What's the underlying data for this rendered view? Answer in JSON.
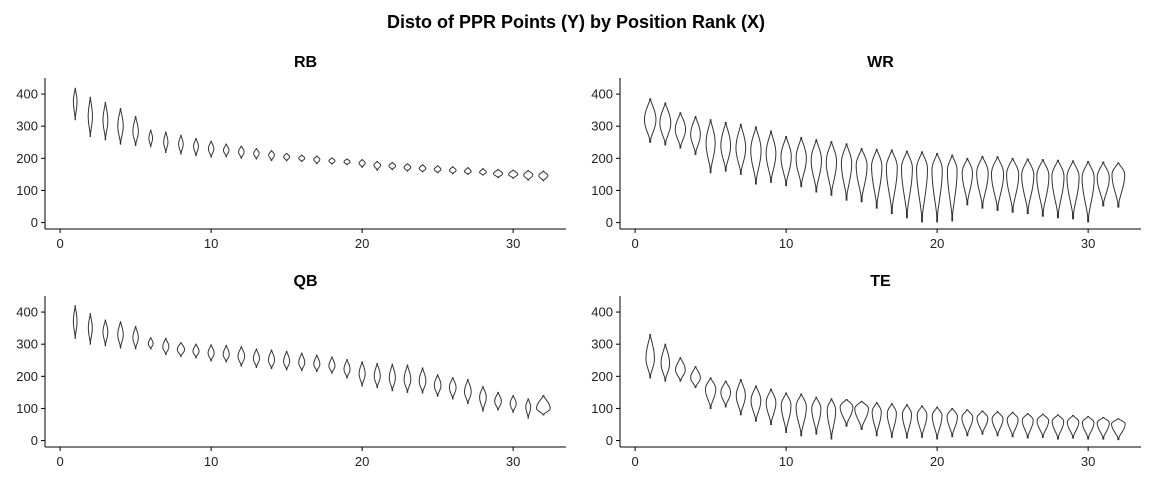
{
  "chart_data": {
    "type": "violin",
    "title": "Disto of PPR Points (Y) by Position Rank (X)",
    "xlim": [
      -1,
      33.5
    ],
    "ylim": [
      -20,
      450
    ],
    "x_ticks": [
      0,
      10,
      20,
      30
    ],
    "y_ticks": [
      0,
      100,
      200,
      300,
      400
    ],
    "panels": [
      {
        "name": "RB",
        "series": [
          {
            "x": 1,
            "min": 320,
            "max": 418,
            "median": 378,
            "hw": 0.12
          },
          {
            "x": 2,
            "min": 268,
            "max": 390,
            "median": 330,
            "hw": 0.14
          },
          {
            "x": 3,
            "min": 258,
            "max": 374,
            "median": 318,
            "hw": 0.16
          },
          {
            "x": 4,
            "min": 244,
            "max": 355,
            "median": 300,
            "hw": 0.18
          },
          {
            "x": 5,
            "min": 240,
            "max": 330,
            "median": 283,
            "hw": 0.18
          },
          {
            "x": 6,
            "min": 236,
            "max": 288,
            "median": 262,
            "hw": 0.12
          },
          {
            "x": 7,
            "min": 218,
            "max": 282,
            "median": 250,
            "hw": 0.14
          },
          {
            "x": 8,
            "min": 213,
            "max": 272,
            "median": 244,
            "hw": 0.15
          },
          {
            "x": 9,
            "min": 208,
            "max": 262,
            "median": 237,
            "hw": 0.16
          },
          {
            "x": 10,
            "min": 204,
            "max": 253,
            "median": 230,
            "hw": 0.18
          },
          {
            "x": 11,
            "min": 205,
            "max": 244,
            "median": 225,
            "hw": 0.18
          },
          {
            "x": 12,
            "min": 200,
            "max": 238,
            "median": 220,
            "hw": 0.18
          },
          {
            "x": 13,
            "min": 198,
            "max": 230,
            "median": 215,
            "hw": 0.18
          },
          {
            "x": 14,
            "min": 193,
            "max": 224,
            "median": 210,
            "hw": 0.19
          },
          {
            "x": 15,
            "min": 192,
            "max": 215,
            "median": 205,
            "hw": 0.2
          },
          {
            "x": 16,
            "min": 190,
            "max": 210,
            "median": 200,
            "hw": 0.2
          },
          {
            "x": 17,
            "min": 183,
            "max": 207,
            "median": 196,
            "hw": 0.2
          },
          {
            "x": 18,
            "min": 182,
            "max": 201,
            "median": 192,
            "hw": 0.2
          },
          {
            "x": 19,
            "min": 180,
            "max": 198,
            "median": 189,
            "hw": 0.2
          },
          {
            "x": 20,
            "min": 172,
            "max": 196,
            "median": 185,
            "hw": 0.2
          },
          {
            "x": 21,
            "min": 163,
            "max": 190,
            "median": 179,
            "hw": 0.22
          },
          {
            "x": 22,
            "min": 165,
            "max": 187,
            "median": 176,
            "hw": 0.22
          },
          {
            "x": 23,
            "min": 160,
            "max": 183,
            "median": 172,
            "hw": 0.22
          },
          {
            "x": 24,
            "min": 158,
            "max": 180,
            "median": 168,
            "hw": 0.22
          },
          {
            "x": 25,
            "min": 155,
            "max": 177,
            "median": 165,
            "hw": 0.22
          },
          {
            "x": 26,
            "min": 152,
            "max": 174,
            "median": 162,
            "hw": 0.22
          },
          {
            "x": 27,
            "min": 150,
            "max": 171,
            "median": 159,
            "hw": 0.22
          },
          {
            "x": 28,
            "min": 148,
            "max": 168,
            "median": 156,
            "hw": 0.22
          },
          {
            "x": 29,
            "min": 140,
            "max": 165,
            "median": 152,
            "hw": 0.3
          },
          {
            "x": 30,
            "min": 138,
            "max": 163,
            "median": 150,
            "hw": 0.3
          },
          {
            "x": 31,
            "min": 132,
            "max": 162,
            "median": 148,
            "hw": 0.3
          },
          {
            "x": 32,
            "min": 130,
            "max": 160,
            "median": 146,
            "hw": 0.3
          }
        ]
      },
      {
        "name": "WR",
        "series": [
          {
            "x": 1,
            "min": 250,
            "max": 385,
            "median": 320,
            "hw": 0.38
          },
          {
            "x": 2,
            "min": 242,
            "max": 372,
            "median": 310,
            "hw": 0.36
          },
          {
            "x": 3,
            "min": 232,
            "max": 342,
            "median": 290,
            "hw": 0.34
          },
          {
            "x": 4,
            "min": 212,
            "max": 330,
            "median": 275,
            "hw": 0.32
          },
          {
            "x": 5,
            "min": 155,
            "max": 320,
            "median": 248,
            "hw": 0.3
          },
          {
            "x": 6,
            "min": 160,
            "max": 312,
            "median": 240,
            "hw": 0.32
          },
          {
            "x": 7,
            "min": 150,
            "max": 306,
            "median": 232,
            "hw": 0.32
          },
          {
            "x": 8,
            "min": 120,
            "max": 298,
            "median": 225,
            "hw": 0.34
          },
          {
            "x": 9,
            "min": 125,
            "max": 285,
            "median": 215,
            "hw": 0.32
          },
          {
            "x": 10,
            "min": 115,
            "max": 268,
            "median": 205,
            "hw": 0.34
          },
          {
            "x": 11,
            "min": 112,
            "max": 265,
            "median": 200,
            "hw": 0.34
          },
          {
            "x": 12,
            "min": 95,
            "max": 258,
            "median": 195,
            "hw": 0.34
          },
          {
            "x": 13,
            "min": 85,
            "max": 252,
            "median": 190,
            "hw": 0.34
          },
          {
            "x": 14,
            "min": 70,
            "max": 245,
            "median": 185,
            "hw": 0.34
          },
          {
            "x": 15,
            "min": 65,
            "max": 230,
            "median": 178,
            "hw": 0.36
          },
          {
            "x": 16,
            "min": 45,
            "max": 228,
            "median": 175,
            "hw": 0.34
          },
          {
            "x": 17,
            "min": 28,
            "max": 226,
            "median": 172,
            "hw": 0.36
          },
          {
            "x": 18,
            "min": 15,
            "max": 222,
            "median": 170,
            "hw": 0.36
          },
          {
            "x": 19,
            "min": 2,
            "max": 220,
            "median": 168,
            "hw": 0.36
          },
          {
            "x": 20,
            "min": 2,
            "max": 215,
            "median": 165,
            "hw": 0.34
          },
          {
            "x": 21,
            "min": 5,
            "max": 210,
            "median": 162,
            "hw": 0.32
          },
          {
            "x": 22,
            "min": 55,
            "max": 200,
            "median": 155,
            "hw": 0.34
          },
          {
            "x": 23,
            "min": 45,
            "max": 206,
            "median": 155,
            "hw": 0.38
          },
          {
            "x": 24,
            "min": 38,
            "max": 205,
            "median": 152,
            "hw": 0.4
          },
          {
            "x": 25,
            "min": 32,
            "max": 200,
            "median": 150,
            "hw": 0.4
          },
          {
            "x": 26,
            "min": 28,
            "max": 198,
            "median": 148,
            "hw": 0.4
          },
          {
            "x": 27,
            "min": 20,
            "max": 196,
            "median": 146,
            "hw": 0.4
          },
          {
            "x": 28,
            "min": 15,
            "max": 194,
            "median": 144,
            "hw": 0.4
          },
          {
            "x": 29,
            "min": 12,
            "max": 192,
            "median": 142,
            "hw": 0.4
          },
          {
            "x": 30,
            "min": 2,
            "max": 190,
            "median": 140,
            "hw": 0.4
          },
          {
            "x": 31,
            "min": 52,
            "max": 188,
            "median": 140,
            "hw": 0.4
          },
          {
            "x": 32,
            "min": 48,
            "max": 186,
            "median": 150,
            "hw": 0.42
          }
        ]
      },
      {
        "name": "QB",
        "series": [
          {
            "x": 1,
            "min": 318,
            "max": 420,
            "median": 370,
            "hw": 0.12
          },
          {
            "x": 2,
            "min": 300,
            "max": 395,
            "median": 350,
            "hw": 0.13
          },
          {
            "x": 3,
            "min": 295,
            "max": 375,
            "median": 338,
            "hw": 0.16
          },
          {
            "x": 4,
            "min": 288,
            "max": 370,
            "median": 330,
            "hw": 0.18
          },
          {
            "x": 5,
            "min": 286,
            "max": 355,
            "median": 320,
            "hw": 0.18
          },
          {
            "x": 6,
            "min": 285,
            "max": 320,
            "median": 302,
            "hw": 0.16
          },
          {
            "x": 7,
            "min": 268,
            "max": 318,
            "median": 292,
            "hw": 0.2
          },
          {
            "x": 8,
            "min": 262,
            "max": 305,
            "median": 283,
            "hw": 0.24
          },
          {
            "x": 9,
            "min": 258,
            "max": 300,
            "median": 278,
            "hw": 0.2
          },
          {
            "x": 10,
            "min": 248,
            "max": 298,
            "median": 272,
            "hw": 0.2
          },
          {
            "x": 11,
            "min": 245,
            "max": 296,
            "median": 268,
            "hw": 0.2
          },
          {
            "x": 12,
            "min": 232,
            "max": 292,
            "median": 262,
            "hw": 0.22
          },
          {
            "x": 13,
            "min": 228,
            "max": 285,
            "median": 255,
            "hw": 0.2
          },
          {
            "x": 14,
            "min": 224,
            "max": 282,
            "median": 250,
            "hw": 0.2
          },
          {
            "x": 15,
            "min": 220,
            "max": 278,
            "median": 246,
            "hw": 0.2
          },
          {
            "x": 16,
            "min": 218,
            "max": 272,
            "median": 242,
            "hw": 0.2
          },
          {
            "x": 17,
            "min": 215,
            "max": 266,
            "median": 238,
            "hw": 0.2
          },
          {
            "x": 18,
            "min": 210,
            "max": 260,
            "median": 232,
            "hw": 0.2
          },
          {
            "x": 19,
            "min": 195,
            "max": 252,
            "median": 222,
            "hw": 0.2
          },
          {
            "x": 20,
            "min": 170,
            "max": 245,
            "median": 208,
            "hw": 0.2
          },
          {
            "x": 21,
            "min": 165,
            "max": 240,
            "median": 200,
            "hw": 0.2
          },
          {
            "x": 22,
            "min": 155,
            "max": 238,
            "median": 195,
            "hw": 0.2
          },
          {
            "x": 23,
            "min": 150,
            "max": 235,
            "median": 190,
            "hw": 0.22
          },
          {
            "x": 24,
            "min": 148,
            "max": 226,
            "median": 185,
            "hw": 0.22
          },
          {
            "x": 25,
            "min": 138,
            "max": 205,
            "median": 172,
            "hw": 0.22
          },
          {
            "x": 26,
            "min": 130,
            "max": 196,
            "median": 165,
            "hw": 0.22
          },
          {
            "x": 27,
            "min": 115,
            "max": 190,
            "median": 152,
            "hw": 0.22
          },
          {
            "x": 28,
            "min": 92,
            "max": 168,
            "median": 135,
            "hw": 0.22
          },
          {
            "x": 29,
            "min": 95,
            "max": 150,
            "median": 122,
            "hw": 0.22
          },
          {
            "x": 30,
            "min": 88,
            "max": 140,
            "median": 115,
            "hw": 0.2
          },
          {
            "x": 31,
            "min": 70,
            "max": 130,
            "median": 105,
            "hw": 0.16
          },
          {
            "x": 32,
            "min": 80,
            "max": 140,
            "median": 100,
            "hw": 0.45
          }
        ]
      },
      {
        "name": "TE",
        "series": [
          {
            "x": 1,
            "min": 195,
            "max": 330,
            "median": 255,
            "hw": 0.28
          },
          {
            "x": 2,
            "min": 185,
            "max": 300,
            "median": 240,
            "hw": 0.28
          },
          {
            "x": 3,
            "min": 185,
            "max": 258,
            "median": 220,
            "hw": 0.32
          },
          {
            "x": 4,
            "min": 165,
            "max": 230,
            "median": 195,
            "hw": 0.32
          },
          {
            "x": 5,
            "min": 100,
            "max": 195,
            "median": 160,
            "hw": 0.34
          },
          {
            "x": 6,
            "min": 105,
            "max": 185,
            "median": 150,
            "hw": 0.32
          },
          {
            "x": 7,
            "min": 80,
            "max": 190,
            "median": 140,
            "hw": 0.3
          },
          {
            "x": 8,
            "min": 60,
            "max": 170,
            "median": 125,
            "hw": 0.32
          },
          {
            "x": 9,
            "min": 50,
            "max": 160,
            "median": 118,
            "hw": 0.32
          },
          {
            "x": 10,
            "min": 25,
            "max": 148,
            "median": 110,
            "hw": 0.32
          },
          {
            "x": 11,
            "min": 15,
            "max": 145,
            "median": 105,
            "hw": 0.34
          },
          {
            "x": 12,
            "min": 20,
            "max": 135,
            "median": 100,
            "hw": 0.3
          },
          {
            "x": 13,
            "min": 5,
            "max": 130,
            "median": 95,
            "hw": 0.28
          },
          {
            "x": 14,
            "min": 45,
            "max": 128,
            "median": 105,
            "hw": 0.42
          },
          {
            "x": 15,
            "min": 35,
            "max": 122,
            "median": 100,
            "hw": 0.45
          },
          {
            "x": 16,
            "min": 15,
            "max": 118,
            "median": 90,
            "hw": 0.3
          },
          {
            "x": 17,
            "min": 10,
            "max": 115,
            "median": 85,
            "hw": 0.3
          },
          {
            "x": 18,
            "min": 8,
            "max": 112,
            "median": 82,
            "hw": 0.3
          },
          {
            "x": 19,
            "min": 10,
            "max": 108,
            "median": 80,
            "hw": 0.32
          },
          {
            "x": 20,
            "min": 5,
            "max": 104,
            "median": 78,
            "hw": 0.32
          },
          {
            "x": 21,
            "min": 12,
            "max": 100,
            "median": 75,
            "hw": 0.34
          },
          {
            "x": 22,
            "min": 15,
            "max": 96,
            "median": 72,
            "hw": 0.36
          },
          {
            "x": 23,
            "min": 20,
            "max": 92,
            "median": 70,
            "hw": 0.36
          },
          {
            "x": 24,
            "min": 15,
            "max": 90,
            "median": 68,
            "hw": 0.36
          },
          {
            "x": 25,
            "min": 12,
            "max": 88,
            "median": 66,
            "hw": 0.36
          },
          {
            "x": 26,
            "min": 8,
            "max": 84,
            "median": 64,
            "hw": 0.36
          },
          {
            "x": 27,
            "min": 10,
            "max": 82,
            "median": 62,
            "hw": 0.38
          },
          {
            "x": 28,
            "min": 5,
            "max": 80,
            "median": 60,
            "hw": 0.38
          },
          {
            "x": 29,
            "min": 8,
            "max": 78,
            "median": 58,
            "hw": 0.38
          },
          {
            "x": 30,
            "min": 5,
            "max": 75,
            "median": 56,
            "hw": 0.38
          },
          {
            "x": 31,
            "min": 5,
            "max": 72,
            "median": 55,
            "hw": 0.4
          },
          {
            "x": 32,
            "min": 3,
            "max": 68,
            "median": 52,
            "hw": 0.45
          }
        ]
      }
    ]
  }
}
